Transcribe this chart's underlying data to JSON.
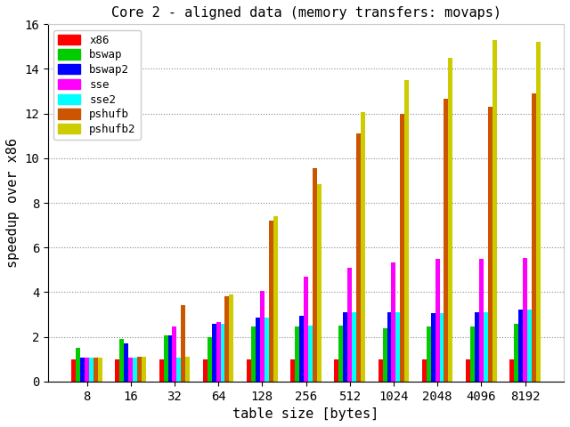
{
  "title": "Core 2 - aligned data (memory transfers: movaps)",
  "xlabel": "table size [bytes]",
  "ylabel": "speedup over x86",
  "categories": [
    8,
    16,
    32,
    64,
    128,
    256,
    512,
    1024,
    2048,
    4096,
    8192
  ],
  "series": {
    "x86": [
      1.0,
      1.0,
      1.0,
      1.0,
      1.0,
      1.0,
      1.0,
      1.0,
      1.0,
      1.0,
      1.0
    ],
    "bswap": [
      1.5,
      1.9,
      2.05,
      2.0,
      2.45,
      2.45,
      2.5,
      2.4,
      2.45,
      2.45,
      2.6
    ],
    "bswap2": [
      1.05,
      1.7,
      2.05,
      2.6,
      2.85,
      2.95,
      3.1,
      3.1,
      3.05,
      3.1,
      3.2
    ],
    "sse": [
      1.05,
      1.05,
      2.45,
      2.65,
      4.05,
      4.7,
      5.1,
      5.35,
      5.5,
      5.5,
      5.55
    ],
    "sse2": [
      1.05,
      1.05,
      1.05,
      2.6,
      2.85,
      2.5,
      3.1,
      3.1,
      3.05,
      3.1,
      3.2
    ],
    "pshufb": [
      1.05,
      1.1,
      3.4,
      3.8,
      7.2,
      9.55,
      11.1,
      12.0,
      12.65,
      12.3,
      12.9
    ],
    "pshufb2": [
      1.05,
      1.1,
      1.1,
      3.9,
      7.4,
      8.85,
      12.05,
      13.5,
      14.5,
      15.3,
      15.2
    ]
  },
  "colors": {
    "x86": "#ff0000",
    "bswap": "#00cc00",
    "bswap2": "#0000ff",
    "sse": "#ff00ff",
    "sse2": "#00ffff",
    "pshufb": "#cc5500",
    "pshufb2": "#cccc00"
  },
  "ylim": [
    0,
    16
  ],
  "yticks": [
    0,
    2,
    4,
    6,
    8,
    10,
    12,
    14,
    16
  ],
  "background_color": "#ffffff",
  "grid_color": "#888888"
}
